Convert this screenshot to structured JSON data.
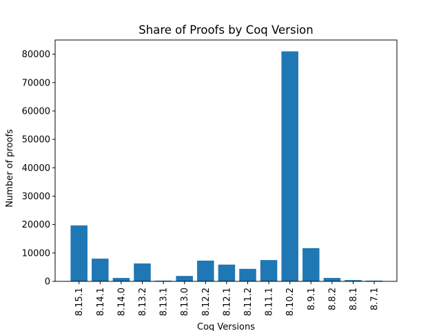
{
  "chart_data": {
    "type": "bar",
    "title": "Share of Proofs by Coq Version",
    "xlabel": "Coq Versions",
    "ylabel": "Number of proofs",
    "categories": [
      "8.15.1",
      "8.14.1",
      "8.14.0",
      "8.13.2",
      "8.13.1",
      "8.13.0",
      "8.12.2",
      "8.12.1",
      "8.11.2",
      "8.11.1",
      "8.10.2",
      "8.9.1",
      "8.8.2",
      "8.8.1",
      "8.7.1"
    ],
    "values": [
      19700,
      8000,
      1200,
      6300,
      250,
      1900,
      7300,
      5900,
      4400,
      7500,
      81000,
      11700,
      1200,
      450,
      250
    ],
    "ylim": [
      0,
      85000
    ],
    "yticks": [
      0,
      10000,
      20000,
      30000,
      40000,
      50000,
      60000,
      70000,
      80000
    ],
    "bar_color": "#1f77b4",
    "grid": false,
    "legend": "none"
  }
}
